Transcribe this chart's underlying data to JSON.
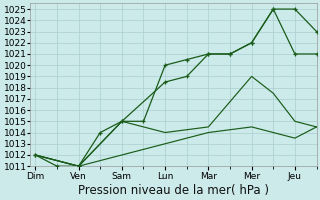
{
  "xlabel": "Pression niveau de la mer( hPa )",
  "background_color": "#cceaea",
  "grid_color": "#aacece",
  "line_color_dark": "#1a5c1a",
  "line_color_mid": "#2a7a2a",
  "ylim": [
    1011,
    1025.5
  ],
  "ytick_min": 1011,
  "ytick_max": 1025,
  "x_labels": [
    "Dim",
    "Ven",
    "Sam",
    "Lun",
    "Mar",
    "Mer",
    "Jeu"
  ],
  "x_ticks": [
    0,
    4,
    8,
    12,
    16,
    20,
    24
  ],
  "xlim": [
    -0.5,
    26
  ],
  "series1_x": [
    0,
    2,
    4,
    6,
    8,
    10,
    12,
    14,
    16,
    18,
    20,
    22,
    24,
    26
  ],
  "series1_y": [
    1012,
    1011,
    1011,
    1014,
    1015,
    1015,
    1020,
    1020.5,
    1021,
    1021,
    1022,
    1025,
    1025,
    1023
  ],
  "series2_x": [
    0,
    4,
    8,
    12,
    14,
    16,
    18,
    20,
    22,
    24,
    26
  ],
  "series2_y": [
    1012,
    1011,
    1015,
    1018.5,
    1019.0,
    1021,
    1021,
    1022,
    1025,
    1021,
    1021
  ],
  "series3_x": [
    0,
    4,
    8,
    12,
    16,
    20,
    22,
    24,
    26
  ],
  "series3_y": [
    1012,
    1011,
    1015,
    1014,
    1014.5,
    1019,
    1017.5,
    1015,
    1014.5
  ],
  "series4_x": [
    0,
    4,
    8,
    12,
    16,
    20,
    22,
    24,
    26
  ],
  "series4_y": [
    1012,
    1011,
    1012,
    1013,
    1014,
    1014.5,
    1014,
    1013.5,
    1014.5
  ],
  "xlabel_fontsize": 8.5,
  "tick_fontsize": 6.5
}
